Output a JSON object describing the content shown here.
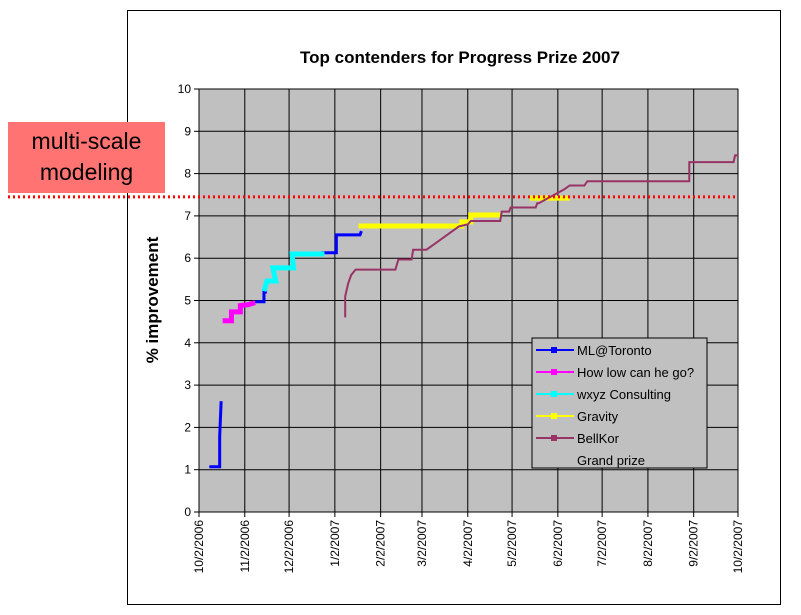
{
  "chart_data": {
    "type": "line",
    "title": "Top contenders for Progress Prize 2007",
    "xlabel": "",
    "ylabel": "% improvement",
    "ylim": [
      0,
      10
    ],
    "yticks": [
      0,
      1,
      2,
      3,
      4,
      5,
      6,
      7,
      8,
      9,
      10
    ],
    "x_unit": "days since 10/2/2006",
    "xlim": [
      0,
      365
    ],
    "xticks": [
      {
        "label": "10/2/2006",
        "day": 0
      },
      {
        "label": "11/2/2006",
        "day": 31
      },
      {
        "label": "12/2/2006",
        "day": 61
      },
      {
        "label": "1/2/2007",
        "day": 92
      },
      {
        "label": "2/2/2007",
        "day": 123
      },
      {
        "label": "3/2/2007",
        "day": 151
      },
      {
        "label": "4/2/2007",
        "day": 182
      },
      {
        "label": "5/2/2007",
        "day": 212
      },
      {
        "label": "6/2/2007",
        "day": 243
      },
      {
        "label": "7/2/2007",
        "day": 273
      },
      {
        "label": "8/2/2007",
        "day": 304
      },
      {
        "label": "9/2/2007",
        "day": 335
      },
      {
        "label": "10/2/2007",
        "day": 365
      }
    ],
    "grid": true,
    "legend_position": "bottom-right",
    "series": [
      {
        "name": "ML@Toronto",
        "color": "#0000ff",
        "width": 3,
        "segments": [
          [
            [
              7,
              1.07
            ],
            [
              14,
              1.07
            ],
            [
              14,
              1.78
            ],
            [
              15,
              2.62
            ]
          ],
          [
            [
              38,
              4.97
            ],
            [
              44,
              4.97
            ],
            [
              44,
              5.2
            ],
            [
              46,
              5.2
            ]
          ],
          [
            [
              83,
              6.13
            ],
            [
              93,
              6.13
            ],
            [
              93,
              6.55
            ],
            [
              109,
              6.55
            ],
            [
              110,
              6.64
            ]
          ]
        ]
      },
      {
        "name": "How low can he go?",
        "color": "#ff00ff",
        "width": 5,
        "segments": [
          [
            [
              16,
              4.52
            ],
            [
              22,
              4.52
            ],
            [
              22,
              4.73
            ],
            [
              28,
              4.73
            ],
            [
              28,
              4.88
            ],
            [
              33,
              4.9
            ],
            [
              38,
              4.95
            ]
          ]
        ]
      },
      {
        "name": "wxyz Consulting",
        "color": "#00ffff",
        "width": 5,
        "segments": [
          [
            [
              44,
              5.22
            ],
            [
              46,
              5.46
            ],
            [
              52,
              5.46
            ],
            [
              50,
              5.77
            ],
            [
              64,
              5.77
            ],
            [
              63,
              6.1
            ],
            [
              85,
              6.1
            ]
          ]
        ]
      },
      {
        "name": "Gravity",
        "color": "#ffff00",
        "width": 5,
        "segments": [
          [
            [
              108,
              6.76
            ],
            [
              178,
              6.76
            ],
            [
              178,
              6.86
            ],
            [
              184,
              6.86
            ],
            [
              184,
              7.02
            ],
            [
              204,
              7.02
            ]
          ],
          [
            [
              224,
              7.42
            ],
            [
              251,
              7.42
            ]
          ]
        ]
      },
      {
        "name": "BellKor",
        "color": "#993366",
        "width": 2,
        "segments": [
          [
            [
              99,
              4.6
            ],
            [
              99,
              5.1
            ],
            [
              101,
              5.4
            ],
            [
              103,
              5.6
            ],
            [
              106,
              5.73
            ],
            [
              133,
              5.73
            ],
            [
              135,
              5.97
            ],
            [
              144,
              5.97
            ],
            [
              145,
              6.2
            ],
            [
              154,
              6.2
            ],
            [
              160,
              6.35
            ],
            [
              168,
              6.55
            ],
            [
              176,
              6.75
            ],
            [
              182,
              6.8
            ],
            [
              184,
              6.88
            ],
            [
              204,
              6.88
            ],
            [
              205,
              7.1
            ],
            [
              210,
              7.1
            ],
            [
              211,
              7.2
            ],
            [
              228,
              7.2
            ],
            [
              229,
              7.3
            ],
            [
              230,
              7.3
            ],
            [
              247,
              7.62
            ],
            [
              251,
              7.72
            ],
            [
              261,
              7.72
            ],
            [
              263,
              7.82
            ],
            [
              332,
              7.82
            ],
            [
              332,
              8.27
            ],
            [
              362,
              8.27
            ],
            [
              363,
              8.43
            ],
            [
              365,
              8.43
            ]
          ]
        ]
      },
      {
        "name": "Grand prize",
        "color": "#ff0000",
        "width": 0,
        "segments": []
      }
    ],
    "annotation": {
      "text": "multi-scale modeling",
      "line_value": 7.45,
      "line_color": "#ff0000"
    }
  }
}
